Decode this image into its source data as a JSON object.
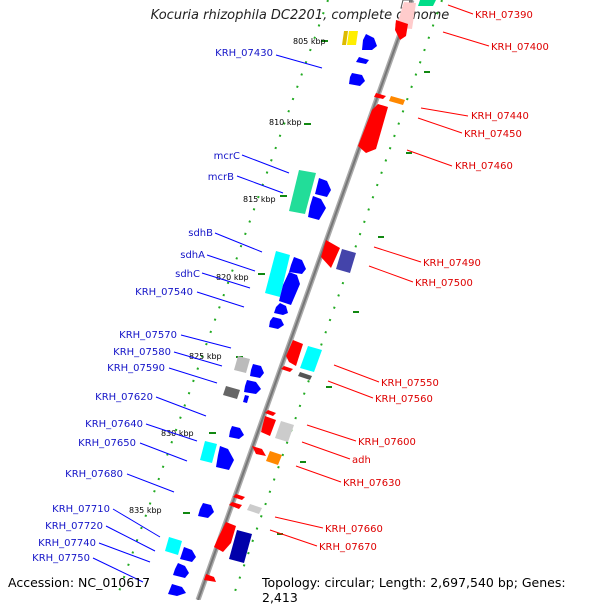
{
  "title": "Kocuria rhizophila DC2201, complete genome",
  "accession": "Accession: NC_010617",
  "topology": "Topology: circular; Length: 2,697,540 bp; Genes: 2,413",
  "colors": {
    "left_label": "#1515c8",
    "right_label": "#dd0000",
    "leader_left": "#0000ff",
    "leader_right": "#ff0000"
  },
  "kbp_marks": [
    "805 kbp",
    "810 kbp",
    "815 kbp",
    "820 kbp",
    "825 kbp",
    "830 kbp",
    "835 kbp"
  ],
  "left_labels": [
    "KRH_07430",
    "mcrC",
    "mcrB",
    "sdhB",
    "sdhA",
    "sdhC",
    "KRH_07540",
    "KRH_07570",
    "KRH_07580",
    "KRH_07590",
    "KRH_07620",
    "KRH_07640",
    "KRH_07650",
    "KRH_07680",
    "KRH_07710",
    "KRH_07720",
    "KRH_07740",
    "KRH_07750"
  ],
  "right_labels": [
    "KRH_07390",
    "KRH_07400",
    "KRH_07440",
    "KRH_07450",
    "KRH_07460",
    "KRH_07490",
    "KRH_07500",
    "KRH_07550",
    "KRH_07560",
    "KRH_07600",
    "adh",
    "KRH_07630",
    "KRH_07660",
    "KRH_07670"
  ]
}
